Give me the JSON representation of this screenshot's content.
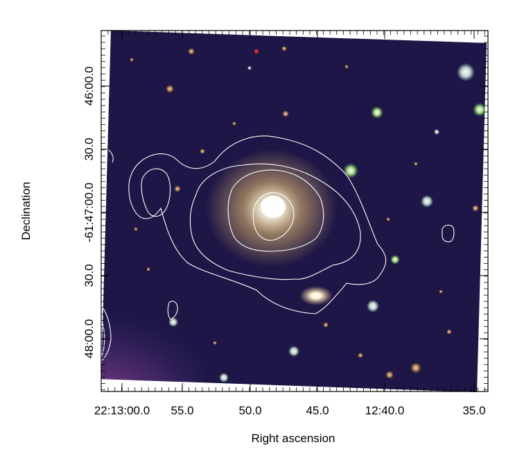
{
  "figure": {
    "xlabel": "Right ascension",
    "ylabel": "Declination",
    "x_ticks": [
      "22:13:00.0",
      "55.0",
      "50.0",
      "45.0",
      "12:40.0",
      "35.0"
    ],
    "y_ticks": [
      "48:00.0",
      "30.0",
      "-61:47:00.0",
      "30.0",
      "46:00.0"
    ],
    "colors": {
      "sky_background": "#1a1440",
      "contour": "#ffffff",
      "galaxy_core": "#fff3d6",
      "galaxy_halo": "#c9a56a",
      "nebula_glow": "#b04a9a"
    },
    "contour_levels_shown": 4,
    "image_type": "false-colour optical sky image with white radio contours"
  }
}
